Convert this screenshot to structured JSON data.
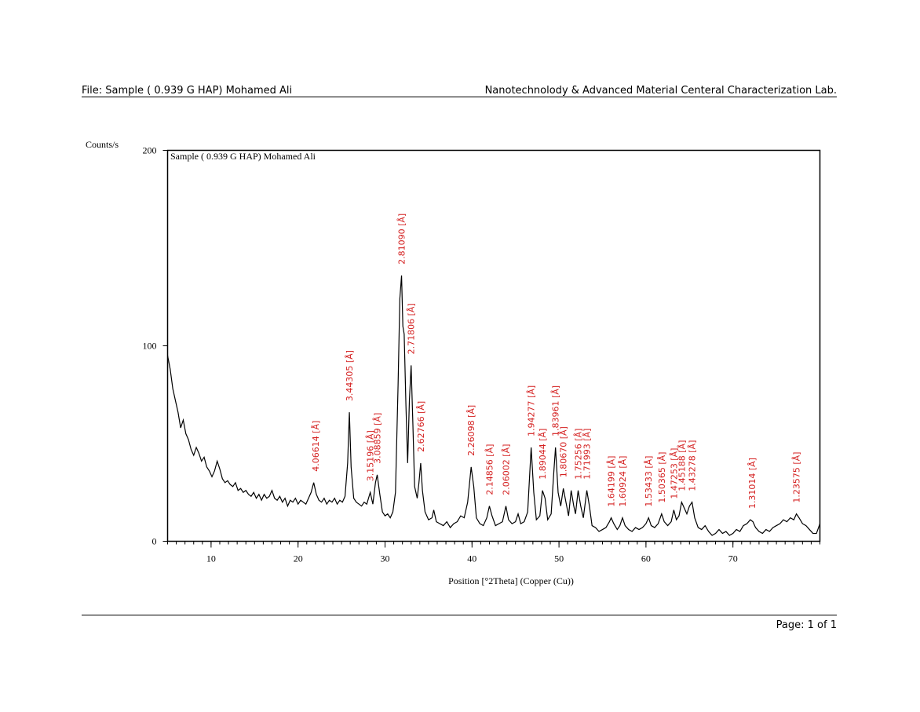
{
  "header": {
    "file": "File: Sample ( 0.939 G HAP) Mohamed Ali",
    "lab": "Nanotechnolody & Advanced Material Centeral Characterization Lab."
  },
  "footer": {
    "page": "Page: 1 of 1"
  },
  "chart_data": {
    "type": "line",
    "title": "Sample ( 0.939 G HAP) Mohamed Ali",
    "y_label": "Counts/s",
    "x_label": "Position [°2Theta] (Copper (Cu))",
    "xlim": [
      5,
      80
    ],
    "ylim": [
      0,
      200
    ],
    "xticks": [
      10,
      20,
      30,
      40,
      50,
      60,
      70
    ],
    "yticks": [
      0,
      100,
      200
    ],
    "x": [
      5.0,
      5.3,
      5.6,
      5.9,
      6.2,
      6.5,
      6.8,
      7.1,
      7.4,
      7.7,
      8.0,
      8.3,
      8.6,
      8.9,
      9.2,
      9.5,
      9.8,
      10.1,
      10.4,
      10.7,
      11.0,
      11.3,
      11.6,
      11.9,
      12.2,
      12.5,
      12.8,
      13.1,
      13.4,
      13.7,
      14.0,
      14.3,
      14.6,
      14.9,
      15.2,
      15.5,
      15.8,
      16.1,
      16.4,
      16.7,
      17.0,
      17.3,
      17.6,
      17.9,
      18.2,
      18.5,
      18.8,
      19.1,
      19.4,
      19.7,
      20.0,
      20.3,
      20.6,
      20.9,
      21.2,
      21.5,
      21.8,
      22.1,
      22.4,
      22.7,
      23.0,
      23.3,
      23.6,
      23.9,
      24.2,
      24.5,
      24.8,
      25.1,
      25.4,
      25.7,
      25.9,
      26.1,
      26.4,
      26.7,
      27.0,
      27.3,
      27.6,
      27.9,
      28.3,
      28.6,
      28.9,
      29.1,
      29.4,
      29.7,
      30.0,
      30.3,
      30.6,
      30.9,
      31.2,
      31.5,
      31.7,
      31.9,
      32.05,
      32.2,
      32.4,
      32.6,
      32.8,
      33.0,
      33.2,
      33.4,
      33.7,
      33.9,
      34.1,
      34.3,
      34.6,
      35.0,
      35.4,
      35.6,
      35.9,
      36.3,
      36.7,
      37.1,
      37.5,
      37.9,
      38.3,
      38.7,
      39.1,
      39.5,
      39.9,
      40.2,
      40.5,
      40.9,
      41.3,
      41.7,
      42.0,
      42.3,
      42.7,
      43.1,
      43.5,
      43.9,
      44.2,
      44.6,
      45.0,
      45.3,
      45.6,
      46.0,
      46.4,
      46.8,
      47.1,
      47.4,
      47.8,
      48.1,
      48.4,
      48.7,
      49.1,
      49.4,
      49.6,
      49.9,
      50.2,
      50.5,
      50.8,
      51.1,
      51.4,
      51.7,
      51.9,
      52.2,
      52.5,
      52.8,
      53.2,
      53.5,
      53.8,
      54.2,
      54.6,
      55.0,
      55.4,
      55.8,
      56.0,
      56.3,
      56.7,
      57.0,
      57.3,
      57.6,
      58.0,
      58.4,
      58.8,
      59.2,
      59.6,
      60.0,
      60.3,
      60.6,
      61.0,
      61.4,
      61.8,
      62.1,
      62.5,
      62.9,
      63.2,
      63.5,
      63.8,
      64.1,
      64.4,
      64.7,
      65.0,
      65.3,
      65.6,
      66.0,
      66.4,
      66.8,
      67.2,
      67.6,
      68.0,
      68.4,
      68.8,
      69.2,
      69.6,
      70.0,
      70.4,
      70.8,
      71.2,
      71.6,
      72.0,
      72.3,
      72.6,
      73.0,
      73.4,
      73.8,
      74.2,
      74.6,
      75.0,
      75.4,
      75.8,
      76.2,
      76.6,
      77.0,
      77.3,
      77.6,
      78.0,
      78.4,
      78.8,
      79.2,
      79.6,
      80.0
    ],
    "series": [
      {
        "name": "Sample ( 0.939 G HAP) Mohamed Ali",
        "color": "#000000",
        "values": [
          95,
          88,
          78,
          72,
          66,
          58,
          62,
          55,
          52,
          47,
          44,
          48,
          45,
          41,
          43,
          38,
          36,
          33,
          36,
          41,
          37,
          32,
          30,
          31,
          29,
          28,
          30,
          26,
          27,
          25,
          26,
          24,
          23,
          25,
          22,
          24,
          21,
          24,
          22,
          23,
          26,
          22,
          21,
          23,
          20,
          22,
          18,
          21,
          20,
          22,
          19,
          21,
          20,
          19,
          22,
          25,
          30,
          24,
          21,
          20,
          22,
          19,
          21,
          20,
          22,
          19,
          21,
          20,
          23,
          40,
          66,
          38,
          22,
          20,
          19,
          18,
          20,
          19,
          25,
          19,
          30,
          34,
          24,
          15,
          13,
          14,
          12,
          15,
          25,
          80,
          124,
          136,
          110,
          106,
          70,
          40,
          72,
          90,
          60,
          28,
          22,
          30,
          40,
          26,
          15,
          11,
          12,
          16,
          10,
          9,
          8,
          10,
          7,
          9,
          10,
          13,
          12,
          20,
          38,
          28,
          12,
          9,
          8,
          12,
          18,
          13,
          8,
          9,
          10,
          18,
          11,
          9,
          10,
          14,
          9,
          10,
          15,
          48,
          25,
          11,
          13,
          26,
          22,
          11,
          14,
          35,
          48,
          25,
          18,
          27,
          20,
          13,
          26,
          18,
          14,
          26,
          18,
          12,
          26,
          18,
          8,
          7,
          5,
          6,
          7,
          10,
          12,
          9,
          6,
          8,
          12,
          8,
          6,
          5,
          7,
          6,
          7,
          9,
          12,
          8,
          7,
          9,
          14,
          10,
          8,
          10,
          16,
          11,
          13,
          20,
          17,
          14,
          18,
          20,
          12,
          7,
          6,
          8,
          5,
          3,
          4,
          6,
          4,
          5,
          3,
          4,
          6,
          5,
          8,
          9,
          11,
          10,
          7,
          5,
          4,
          6,
          5,
          7,
          8,
          9,
          11,
          10,
          12,
          11,
          14,
          12,
          9,
          8,
          6,
          4,
          4,
          9
        ]
      }
    ],
    "annotation_color": "#d42020",
    "annotations": [
      {
        "x": 22.0,
        "y": 30,
        "label": "4.06614 [Å]"
      },
      {
        "x": 25.9,
        "y": 66,
        "label": "3.44305 [Å]"
      },
      {
        "x": 28.3,
        "y": 25,
        "label": "3.15196 [Å]"
      },
      {
        "x": 29.1,
        "y": 34,
        "label": "3.08859 [Å]"
      },
      {
        "x": 31.9,
        "y": 136,
        "label": "2.81090 [Å]"
      },
      {
        "x": 33.0,
        "y": 90,
        "label": "2.71806 [Å]"
      },
      {
        "x": 34.1,
        "y": 40,
        "label": "2.62766 [Å]"
      },
      {
        "x": 39.9,
        "y": 38,
        "label": "2.26098 [Å]"
      },
      {
        "x": 42.0,
        "y": 18,
        "label": "2.14856 [Å]"
      },
      {
        "x": 43.9,
        "y": 18,
        "label": "2.06002 [Å]"
      },
      {
        "x": 46.8,
        "y": 48,
        "label": "1.94277 [Å]"
      },
      {
        "x": 48.1,
        "y": 26,
        "label": "1.89044 [Å]"
      },
      {
        "x": 49.6,
        "y": 48,
        "label": "1.83961 [Å]"
      },
      {
        "x": 50.5,
        "y": 27,
        "label": "1.80670 [Å]"
      },
      {
        "x": 52.2,
        "y": 26,
        "label": "1.75256 [Å]"
      },
      {
        "x": 53.2,
        "y": 26,
        "label": "1.71993 [Å]"
      },
      {
        "x": 56.0,
        "y": 12,
        "label": "1.64199 [Å]"
      },
      {
        "x": 57.3,
        "y": 12,
        "label": "1.60924 [Å]"
      },
      {
        "x": 60.3,
        "y": 12,
        "label": "1.53433 [Å]"
      },
      {
        "x": 61.8,
        "y": 14,
        "label": "1.50365 [Å]"
      },
      {
        "x": 63.2,
        "y": 16,
        "label": "1.47253 [Å]"
      },
      {
        "x": 64.1,
        "y": 20,
        "label": "1.45188 [Å]"
      },
      {
        "x": 65.3,
        "y": 20,
        "label": "1.43278 [Å]"
      },
      {
        "x": 72.2,
        "y": 11,
        "label": "1.31014 [Å]"
      },
      {
        "x": 77.3,
        "y": 14,
        "label": "1.23575 [Å]"
      }
    ]
  }
}
